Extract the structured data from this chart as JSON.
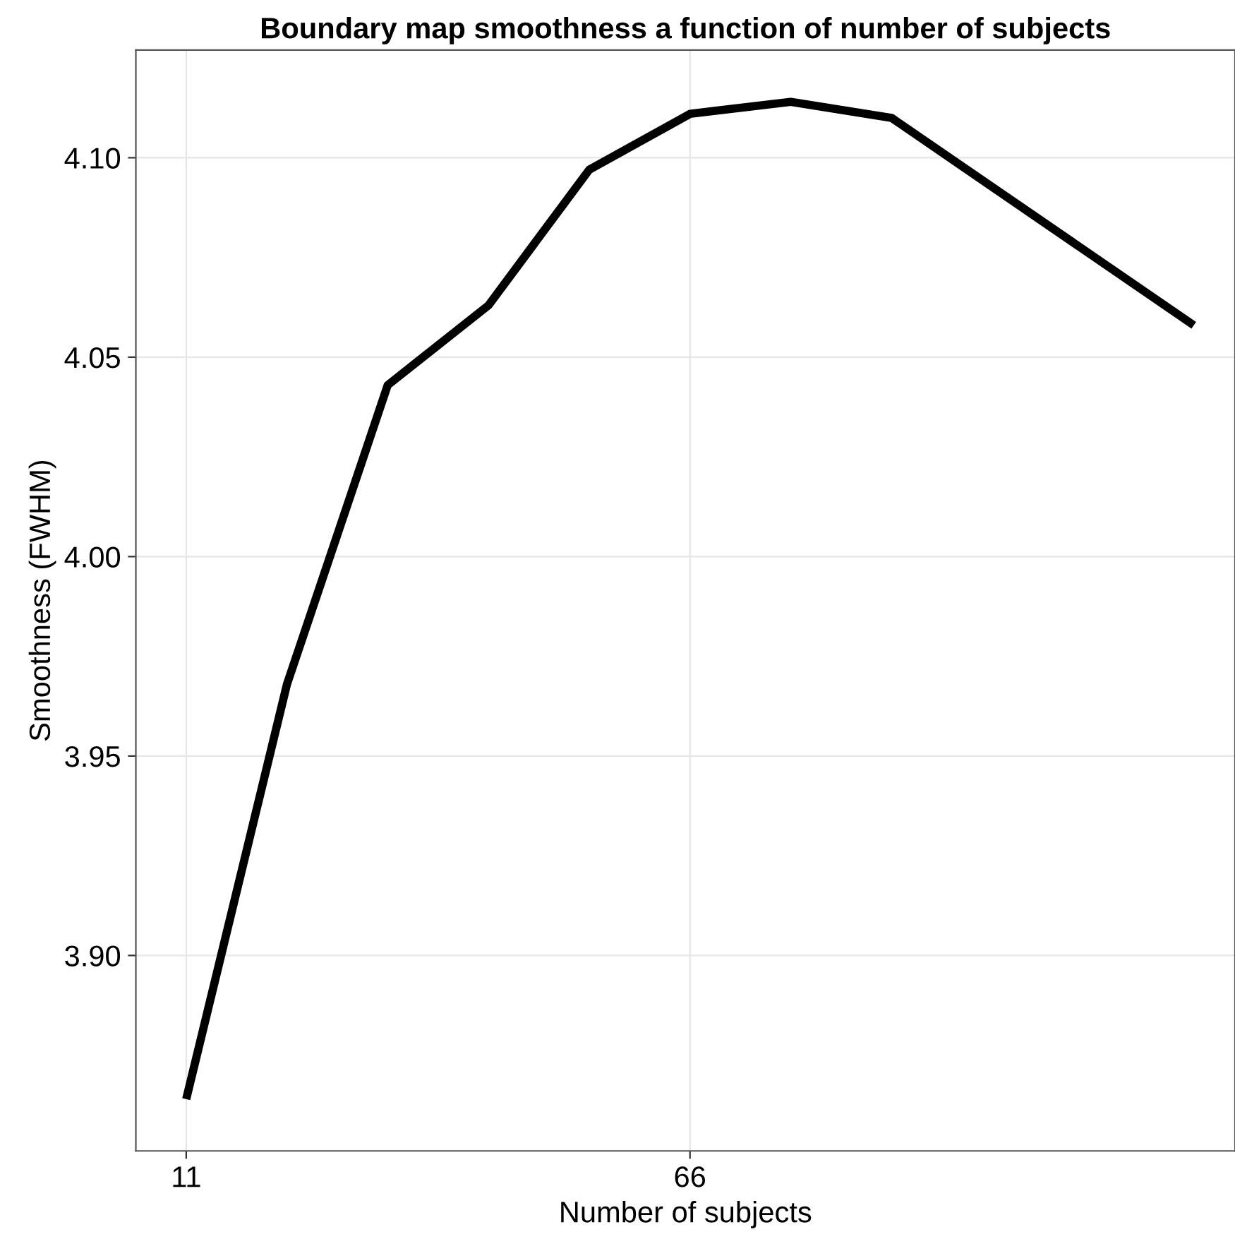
{
  "chart_data": {
    "type": "line",
    "title": "Boundary map smoothness a function of number of subjects",
    "xlabel": "Number of subjects",
    "ylabel": "Smoothness (FWHM)",
    "series": [
      {
        "color": "#000000",
        "x": [
          11,
          22,
          33,
          44,
          55,
          66,
          77,
          88,
          121
        ],
        "values": [
          3.864,
          3.968,
          4.043,
          4.063,
          4.097,
          4.111,
          4.114,
          4.11,
          4.058
        ]
      }
    ],
    "xlim": [
      5.5,
      125.5
    ],
    "xticks": [
      11,
      66
    ],
    "ylim": [
      3.851,
      4.127
    ],
    "yticks": [
      {
        "value": 3.9,
        "label": "3.90"
      },
      {
        "value": 3.95,
        "label": "3.95"
      },
      {
        "value": 4.0,
        "label": "4.00"
      },
      {
        "value": 4.05,
        "label": "4.05"
      },
      {
        "value": 4.1,
        "label": "4.10"
      }
    ],
    "grid": true,
    "marker": "none",
    "line_style": "solid"
  }
}
